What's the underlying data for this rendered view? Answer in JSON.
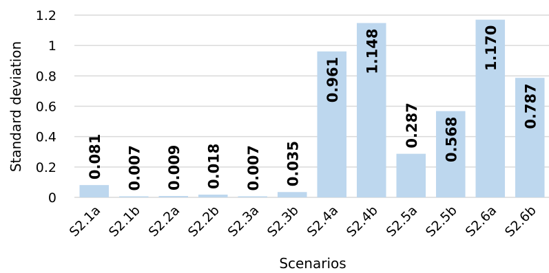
{
  "chart_data": {
    "type": "bar",
    "title": "",
    "xlabel": "Scenarios",
    "ylabel": "Standard deviation",
    "ylim": [
      0,
      1.2
    ],
    "yticks": [
      "0",
      "0.2",
      "0.4",
      "0.6",
      "0.8",
      "1",
      "1.2"
    ],
    "categories": [
      "S2.1a",
      "S2.1b",
      "S2.2a",
      "S2.2b",
      "S2.3a",
      "S2.3b",
      "S2.4a",
      "S2.4b",
      "S2.5a",
      "S2.5b",
      "S2.6a",
      "S2.6b"
    ],
    "values": [
      0.081,
      0.007,
      0.009,
      0.018,
      0.007,
      0.035,
      0.961,
      1.148,
      0.287,
      0.568,
      1.17,
      0.787
    ],
    "value_labels": [
      "0.081",
      "0.007",
      "0.009",
      "0.018",
      "0.007",
      "0.035",
      "0.961",
      "1.148",
      "0.287",
      "0.568",
      "1.170",
      "0.787"
    ],
    "grid": true,
    "bar_color": "#bdd7ee",
    "grid_color": "#d9d9d9"
  }
}
